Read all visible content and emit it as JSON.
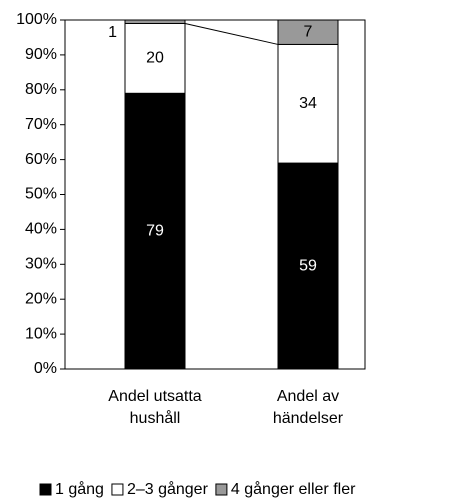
{
  "chart_data": {
    "type": "stacked_bar",
    "categories": [
      "Andel utsatta hushåll",
      "Andel av händelser"
    ],
    "series": [
      {
        "name": "1 gång",
        "color": "#000000",
        "values": [
          79,
          59
        ]
      },
      {
        "name": "2–3 gånger",
        "color": "#ffffff",
        "values": [
          20,
          34
        ]
      },
      {
        "name": "4 gånger eller fler",
        "color": "#999999",
        "values": [
          1,
          7
        ]
      }
    ],
    "ylim": [
      0,
      100
    ],
    "yticks": [
      {
        "value": 0,
        "label": "0%"
      },
      {
        "value": 10,
        "label": "10%"
      },
      {
        "value": 20,
        "label": "20%"
      },
      {
        "value": 30,
        "label": "30%"
      },
      {
        "value": 40,
        "label": "40%"
      },
      {
        "value": 50,
        "label": "50%"
      },
      {
        "value": 60,
        "label": "60%"
      },
      {
        "value": 70,
        "label": "70%"
      },
      {
        "value": 80,
        "label": "80%"
      },
      {
        "value": 90,
        "label": "90%"
      },
      {
        "value": 100,
        "label": "100%"
      }
    ],
    "grid": false,
    "legend": "bottom"
  }
}
